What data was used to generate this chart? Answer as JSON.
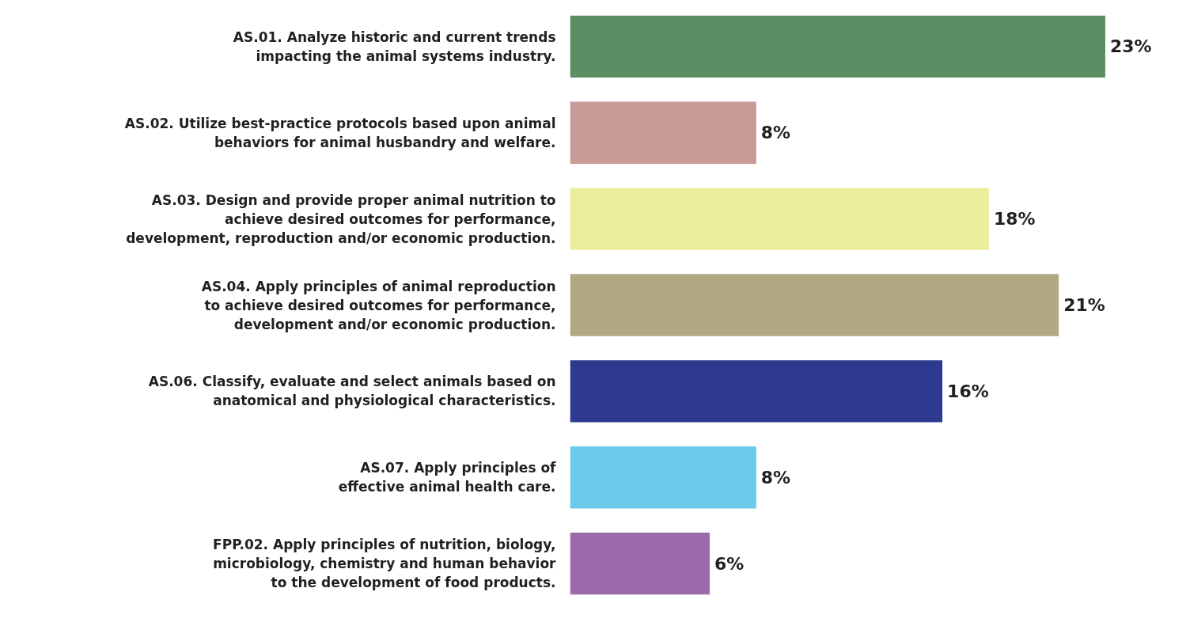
{
  "chart_data": {
    "type": "bar",
    "orientation": "horizontal",
    "categories": [
      "AS.01. Analyze historic and current trends\nimpacting the animal systems industry.",
      "AS.02. Utilize best-practice protocols based upon animal\nbehaviors for animal husbandry and welfare.",
      "AS.03. Design and provide proper animal nutrition to\nachieve desired outcomes for performance,\ndevelopment, reproduction and/or economic production.",
      "AS.04. Apply principles of animal reproduction\nto achieve desired outcomes for performance,\ndevelopment and/or economic production.",
      "AS.06. Classify, evaluate and select animals based on\nanatomical and physiological characteristics.",
      "AS.07. Apply principles of\neffective animal health care.",
      "FPP.02. Apply principles of nutrition, biology,\nmicrobiology, chemistry and human behavior\nto the development of food products."
    ],
    "values": [
      23,
      8,
      18,
      21,
      16,
      8,
      6
    ],
    "value_labels": [
      "23%",
      "8%",
      "18%",
      "21%",
      "16%",
      "8%",
      "6%"
    ],
    "colors": [
      "#5b8e63",
      "#c89a98",
      "#ecee9c",
      "#b0a882",
      "#2e3990",
      "#6ccaea",
      "#9b6aab"
    ],
    "tick_labels": "y",
    "grid": false
  }
}
